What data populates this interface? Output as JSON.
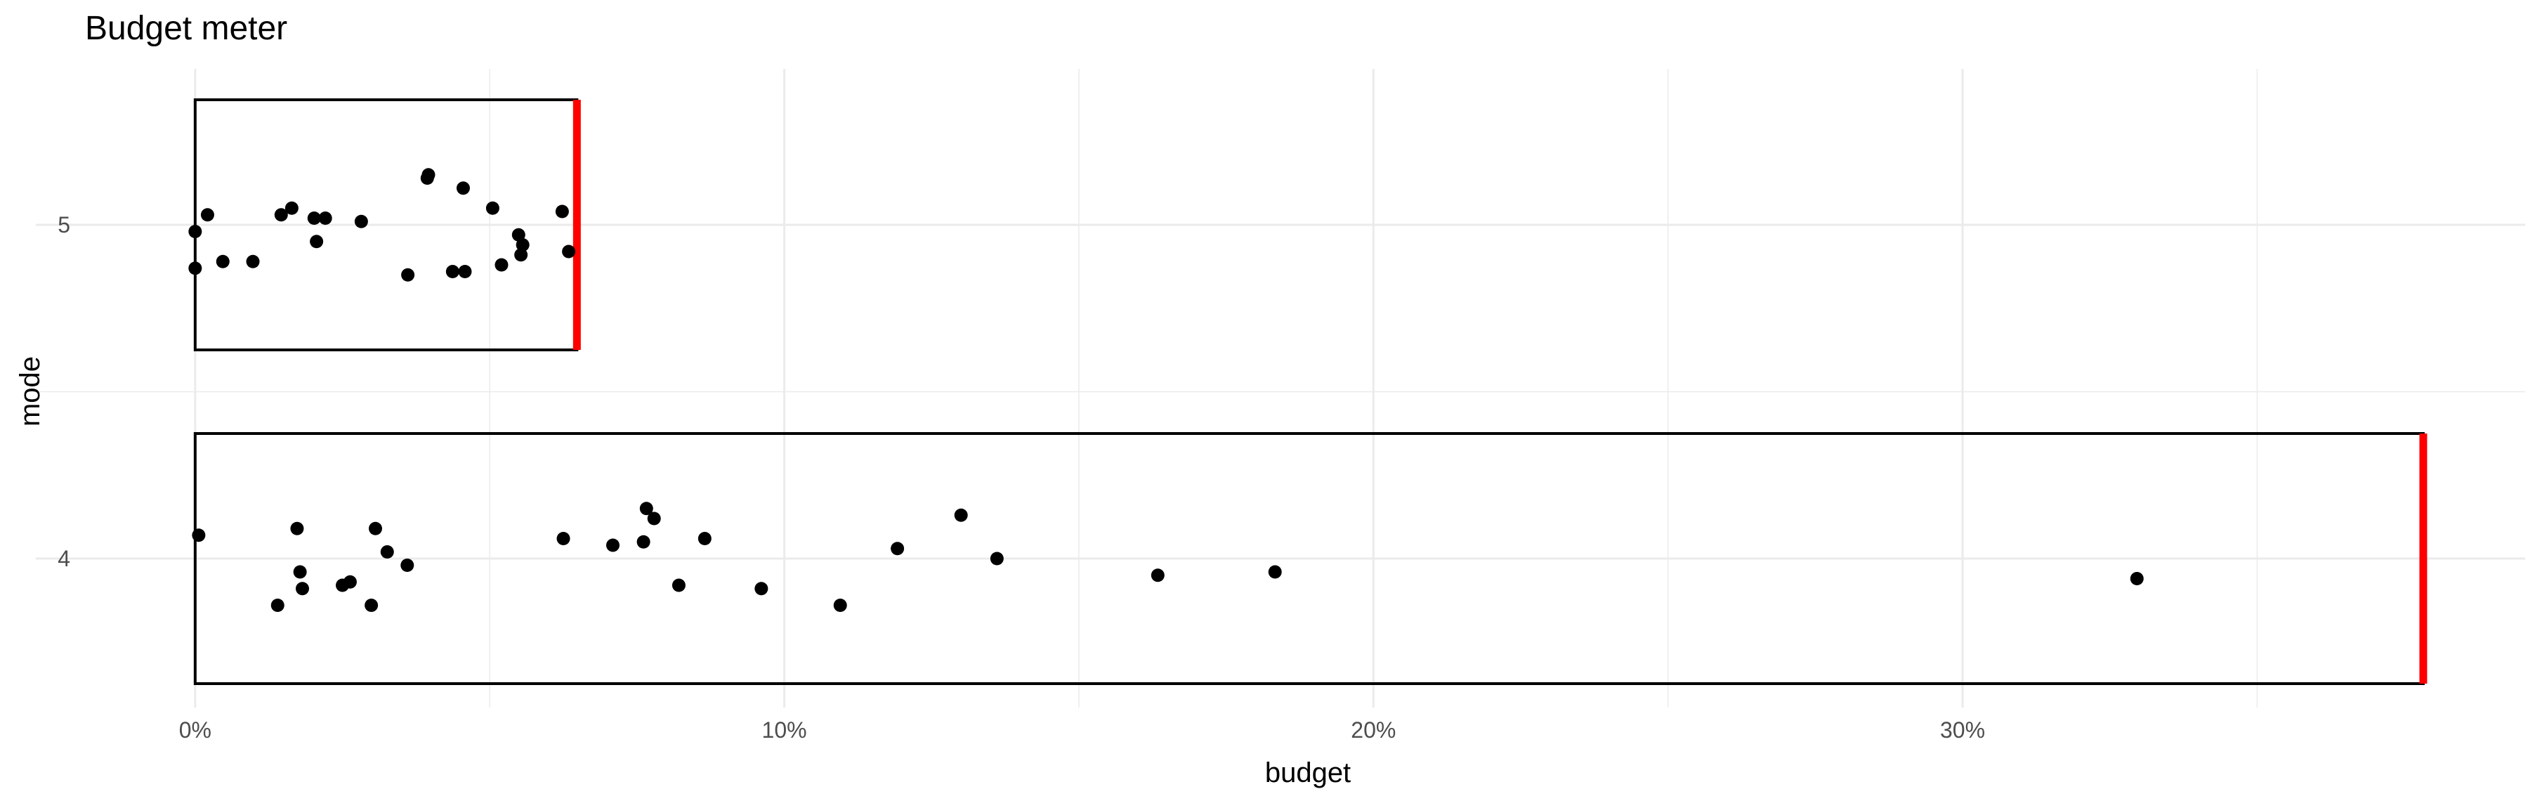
{
  "chart_data": {
    "type": "scatter",
    "title": "Budget meter",
    "xlabel": "budget",
    "ylabel": "mode",
    "x_format": "percent",
    "xlim": [
      -0.0187,
      0.3955
    ],
    "x_major_ticks": [
      0,
      0.1,
      0.2,
      0.3
    ],
    "x_tick_labels": [
      "0%",
      "10%",
      "20%",
      "30%"
    ],
    "x_minor_ticks": [
      0.05,
      0.15,
      0.25,
      0.35
    ],
    "categories": [
      "4",
      "5"
    ],
    "grid": true,
    "colors": {
      "points": "#000000",
      "marker": "#ff0000",
      "box": "#000000",
      "grid": "#ebebeb"
    },
    "groups": [
      {
        "mode": "5",
        "box": [
          0,
          0.0648
        ],
        "budget_marker": 0.0648,
        "points": [
          {
            "x": 0.0,
            "y": 4.98
          },
          {
            "x": 0.0,
            "y": 4.87
          },
          {
            "x": 0.0021,
            "y": 5.03
          },
          {
            "x": 0.0047,
            "y": 4.89
          },
          {
            "x": 0.0098,
            "y": 4.89
          },
          {
            "x": 0.0146,
            "y": 5.03
          },
          {
            "x": 0.0164,
            "y": 5.05
          },
          {
            "x": 0.0202,
            "y": 5.02
          },
          {
            "x": 0.0206,
            "y": 4.95
          },
          {
            "x": 0.0221,
            "y": 5.02
          },
          {
            "x": 0.0282,
            "y": 5.01
          },
          {
            "x": 0.0361,
            "y": 4.85
          },
          {
            "x": 0.0394,
            "y": 5.14
          },
          {
            "x": 0.0396,
            "y": 5.15
          },
          {
            "x": 0.0437,
            "y": 4.86
          },
          {
            "x": 0.0455,
            "y": 5.11
          },
          {
            "x": 0.0458,
            "y": 4.86
          },
          {
            "x": 0.0505,
            "y": 5.05
          },
          {
            "x": 0.052,
            "y": 4.88
          },
          {
            "x": 0.0549,
            "y": 4.97
          },
          {
            "x": 0.0553,
            "y": 4.91
          },
          {
            "x": 0.0556,
            "y": 4.94
          },
          {
            "x": 0.0623,
            "y": 5.04
          },
          {
            "x": 0.0634,
            "y": 4.92
          }
        ]
      },
      {
        "mode": "4",
        "box": [
          0,
          0.3782
        ],
        "budget_marker": 0.3782,
        "points": [
          {
            "x": 0.0006,
            "y": 4.07
          },
          {
            "x": 0.014,
            "y": 3.86
          },
          {
            "x": 0.0173,
            "y": 4.09
          },
          {
            "x": 0.0178,
            "y": 3.96
          },
          {
            "x": 0.0182,
            "y": 3.91
          },
          {
            "x": 0.025,
            "y": 3.92
          },
          {
            "x": 0.0263,
            "y": 3.93
          },
          {
            "x": 0.0299,
            "y": 3.86
          },
          {
            "x": 0.0306,
            "y": 4.09
          },
          {
            "x": 0.0326,
            "y": 4.02
          },
          {
            "x": 0.036,
            "y": 3.98
          },
          {
            "x": 0.0625,
            "y": 4.06
          },
          {
            "x": 0.0709,
            "y": 4.04
          },
          {
            "x": 0.0761,
            "y": 4.05
          },
          {
            "x": 0.0766,
            "y": 4.15
          },
          {
            "x": 0.0779,
            "y": 4.12
          },
          {
            "x": 0.0821,
            "y": 3.92
          },
          {
            "x": 0.0865,
            "y": 4.06
          },
          {
            "x": 0.0961,
            "y": 3.91
          },
          {
            "x": 0.1095,
            "y": 3.86
          },
          {
            "x": 0.1192,
            "y": 4.03
          },
          {
            "x": 0.13,
            "y": 4.13
          },
          {
            "x": 0.1361,
            "y": 4.0
          },
          {
            "x": 0.1634,
            "y": 3.95
          },
          {
            "x": 0.1833,
            "y": 3.96
          },
          {
            "x": 0.3296,
            "y": 3.94
          }
        ]
      }
    ]
  }
}
